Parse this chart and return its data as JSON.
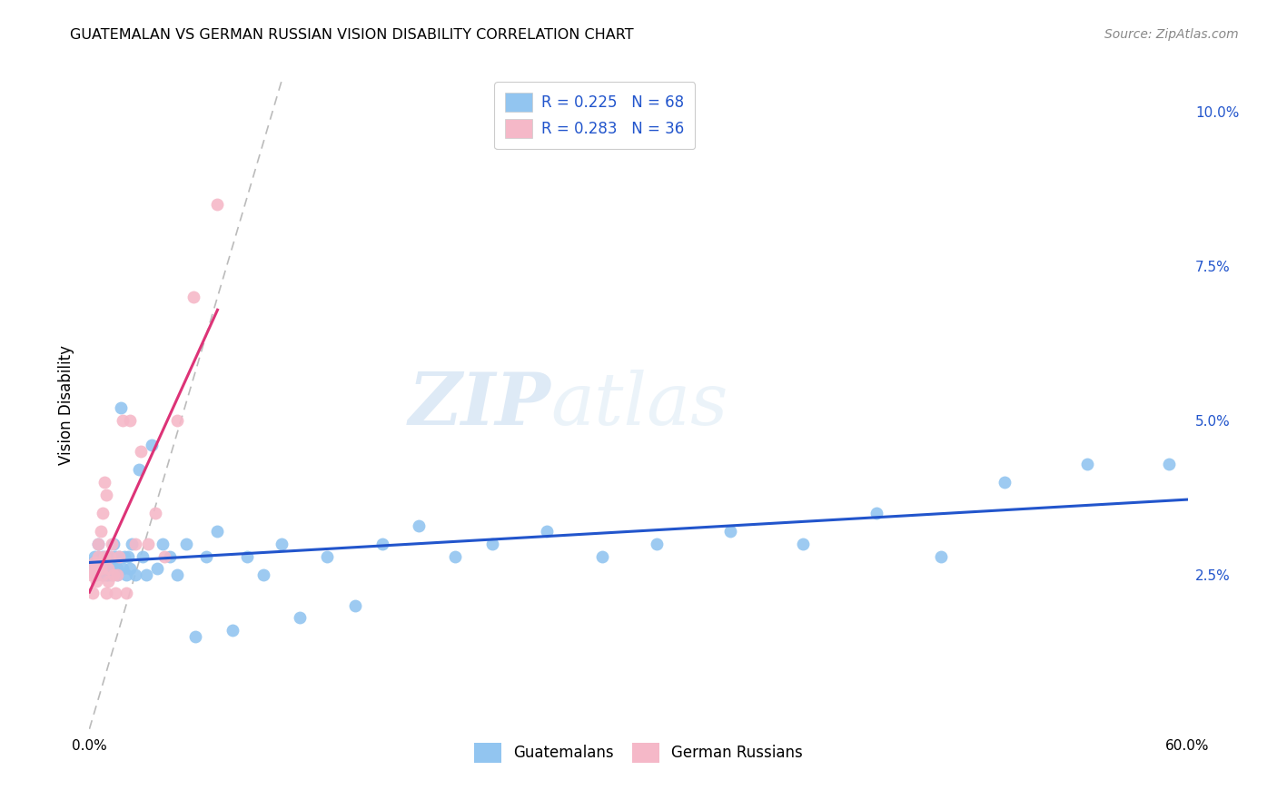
{
  "title": "GUATEMALAN VS GERMAN RUSSIAN VISION DISABILITY CORRELATION CHART",
  "source": "Source: ZipAtlas.com",
  "ylabel": "Vision Disability",
  "watermark_zip": "ZIP",
  "watermark_atlas": "atlas",
  "xlim": [
    0.0,
    0.6
  ],
  "ylim": [
    0.0,
    0.105
  ],
  "x_ticks": [
    0.0,
    0.1,
    0.2,
    0.3,
    0.4,
    0.5,
    0.6
  ],
  "x_tick_labels": [
    "0.0%",
    "",
    "",
    "",
    "",
    "",
    "60.0%"
  ],
  "y_ticks_right": [
    0.025,
    0.05,
    0.075,
    0.1
  ],
  "y_tick_labels_right": [
    "2.5%",
    "5.0%",
    "7.5%",
    "10.0%"
  ],
  "legend_line1": "R = 0.225   N = 68",
  "legend_line2": "R = 0.283   N = 36",
  "blue_color": "#92C5F0",
  "pink_color": "#F5B8C8",
  "blue_line_color": "#2255CC",
  "pink_line_color": "#DD3377",
  "diagonal_color": "#BBBBBB",
  "background_color": "#FFFFFF",
  "grid_color": "#E8E8E8",
  "guatemalans_x": [
    0.002,
    0.003,
    0.003,
    0.004,
    0.004,
    0.005,
    0.005,
    0.006,
    0.006,
    0.007,
    0.007,
    0.008,
    0.008,
    0.009,
    0.009,
    0.01,
    0.01,
    0.011,
    0.011,
    0.012,
    0.012,
    0.013,
    0.013,
    0.014,
    0.015,
    0.015,
    0.016,
    0.017,
    0.018,
    0.019,
    0.02,
    0.021,
    0.022,
    0.023,
    0.025,
    0.027,
    0.029,
    0.031,
    0.034,
    0.037,
    0.04,
    0.044,
    0.048,
    0.053,
    0.058,
    0.064,
    0.07,
    0.078,
    0.086,
    0.095,
    0.105,
    0.115,
    0.13,
    0.145,
    0.16,
    0.18,
    0.2,
    0.22,
    0.25,
    0.28,
    0.31,
    0.35,
    0.39,
    0.43,
    0.465,
    0.5,
    0.545,
    0.59
  ],
  "guatemalans_y": [
    0.027,
    0.026,
    0.028,
    0.025,
    0.027,
    0.028,
    0.03,
    0.026,
    0.027,
    0.025,
    0.028,
    0.026,
    0.027,
    0.025,
    0.028,
    0.026,
    0.025,
    0.027,
    0.028,
    0.025,
    0.026,
    0.03,
    0.027,
    0.028,
    0.025,
    0.026,
    0.028,
    0.052,
    0.026,
    0.028,
    0.025,
    0.028,
    0.026,
    0.03,
    0.025,
    0.042,
    0.028,
    0.025,
    0.046,
    0.026,
    0.03,
    0.028,
    0.025,
    0.03,
    0.015,
    0.028,
    0.032,
    0.016,
    0.028,
    0.025,
    0.03,
    0.018,
    0.028,
    0.02,
    0.03,
    0.033,
    0.028,
    0.03,
    0.032,
    0.028,
    0.03,
    0.032,
    0.03,
    0.035,
    0.028,
    0.04,
    0.043,
    0.043
  ],
  "german_russian_x": [
    0.001,
    0.002,
    0.002,
    0.003,
    0.003,
    0.004,
    0.004,
    0.005,
    0.005,
    0.006,
    0.006,
    0.007,
    0.007,
    0.008,
    0.008,
    0.009,
    0.009,
    0.01,
    0.01,
    0.011,
    0.012,
    0.013,
    0.014,
    0.015,
    0.016,
    0.018,
    0.02,
    0.022,
    0.025,
    0.028,
    0.032,
    0.036,
    0.041,
    0.048,
    0.057,
    0.07
  ],
  "german_russian_y": [
    0.025,
    0.022,
    0.026,
    0.025,
    0.027,
    0.024,
    0.026,
    0.028,
    0.03,
    0.026,
    0.032,
    0.025,
    0.035,
    0.028,
    0.04,
    0.022,
    0.038,
    0.024,
    0.026,
    0.028,
    0.03,
    0.025,
    0.022,
    0.025,
    0.028,
    0.05,
    0.022,
    0.05,
    0.03,
    0.045,
    0.03,
    0.035,
    0.028,
    0.05,
    0.07,
    0.085
  ]
}
